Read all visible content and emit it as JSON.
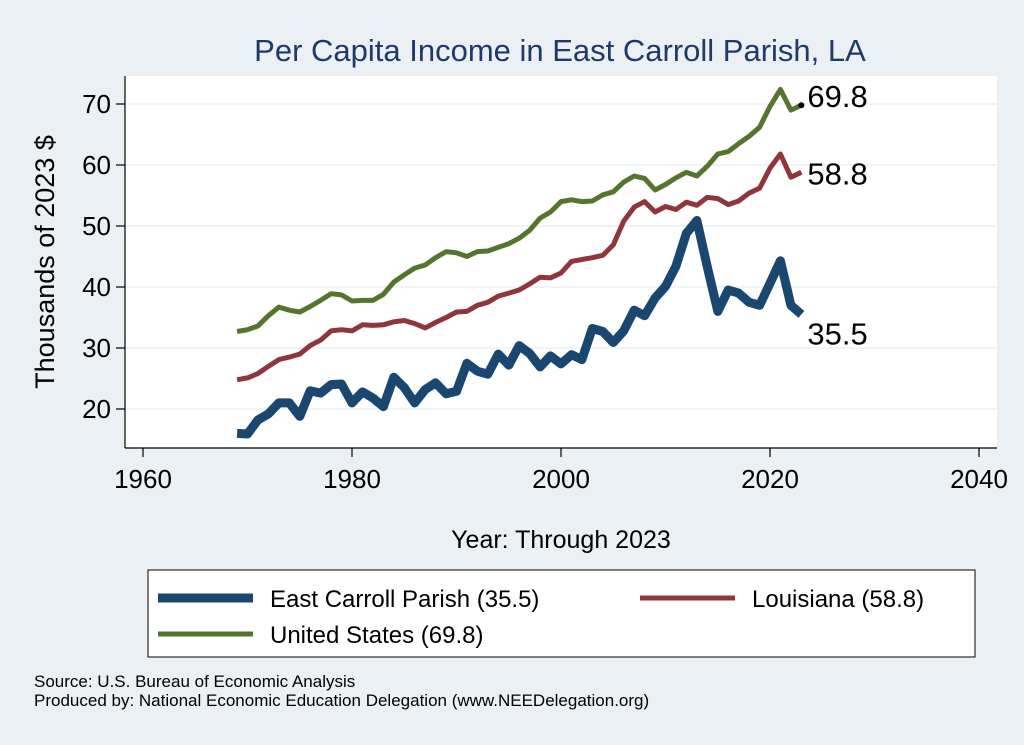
{
  "chart_data": {
    "type": "line",
    "title": "Per Capita Income in East Carroll Parish, LA",
    "xlabel": "Year: Through 2023",
    "ylabel": "Thousands of 2023 $",
    "xlim": [
      1960,
      2040
    ],
    "ylim": [
      14,
      76
    ],
    "xticks": [
      1960,
      1980,
      2000,
      2020,
      2040
    ],
    "yticks": [
      20,
      30,
      40,
      50,
      60,
      70
    ],
    "grid": true,
    "legend_position": "bottom",
    "series": [
      {
        "name": "East Carroll Parish (35.5)",
        "color": "#1a476f",
        "end_label": "35.5",
        "x": [
          1969,
          1970,
          1971,
          1972,
          1973,
          1974,
          1975,
          1976,
          1977,
          1978,
          1979,
          1980,
          1981,
          1982,
          1983,
          1984,
          1985,
          1986,
          1987,
          1988,
          1989,
          1990,
          1991,
          1992,
          1993,
          1994,
          1995,
          1996,
          1997,
          1998,
          1999,
          2000,
          2001,
          2002,
          2003,
          2004,
          2005,
          2006,
          2007,
          2008,
          2009,
          2010,
          2011,
          2012,
          2013,
          2014,
          2015,
          2016,
          2017,
          2018,
          2019,
          2020,
          2021,
          2022,
          2023
        ],
        "values": [
          16.0,
          15.9,
          18.2,
          19.2,
          21.0,
          21.0,
          18.8,
          23.0,
          22.6,
          24.0,
          24.1,
          21.0,
          22.8,
          21.8,
          20.4,
          25.2,
          23.5,
          21.0,
          23.2,
          24.3,
          22.5,
          22.9,
          27.5,
          26.2,
          25.7,
          29.0,
          27.2,
          30.4,
          29.1,
          26.9,
          28.7,
          27.4,
          28.9,
          28.1,
          33.2,
          32.7,
          30.9,
          32.8,
          36.2,
          35.3,
          38.2,
          40.1,
          43.4,
          48.8,
          50.9,
          43.3,
          36.0,
          39.5,
          39.0,
          37.5,
          37.0,
          40.6,
          44.3,
          37.0,
          35.5
        ]
      },
      {
        "name": "Louisiana (58.8)",
        "color": "#90353b",
        "end_label": "58.8",
        "x": [
          1969,
          1970,
          1971,
          1972,
          1973,
          1974,
          1975,
          1976,
          1977,
          1978,
          1979,
          1980,
          1981,
          1982,
          1983,
          1984,
          1985,
          1986,
          1987,
          1988,
          1989,
          1990,
          1991,
          1992,
          1993,
          1994,
          1995,
          1996,
          1997,
          1998,
          1999,
          2000,
          2001,
          2002,
          2003,
          2004,
          2005,
          2006,
          2007,
          2008,
          2009,
          2010,
          2011,
          2012,
          2013,
          2014,
          2015,
          2016,
          2017,
          2018,
          2019,
          2020,
          2021,
          2022,
          2023
        ],
        "values": [
          24.8,
          25.1,
          25.8,
          27.0,
          28.1,
          28.5,
          29.0,
          30.4,
          31.3,
          32.8,
          33.0,
          32.8,
          33.8,
          33.7,
          33.8,
          34.3,
          34.5,
          34.0,
          33.3,
          34.2,
          35.0,
          35.9,
          36.0,
          37.0,
          37.5,
          38.5,
          39.0,
          39.5,
          40.5,
          41.6,
          41.5,
          42.3,
          44.2,
          44.5,
          44.8,
          45.2,
          46.9,
          50.8,
          53.1,
          54.0,
          52.3,
          53.2,
          52.7,
          53.9,
          53.4,
          54.7,
          54.5,
          53.5,
          54.1,
          55.4,
          56.2,
          59.5,
          61.8,
          58.0,
          58.8
        ]
      },
      {
        "name": "United States (69.8)",
        "color": "#55752f",
        "end_label": "69.8",
        "x": [
          1969,
          1970,
          1971,
          1972,
          1973,
          1974,
          1975,
          1976,
          1977,
          1978,
          1979,
          1980,
          1981,
          1982,
          1983,
          1984,
          1985,
          1986,
          1987,
          1988,
          1989,
          1990,
          1991,
          1992,
          1993,
          1994,
          1995,
          1996,
          1997,
          1998,
          1999,
          2000,
          2001,
          2002,
          2003,
          2004,
          2005,
          2006,
          2007,
          2008,
          2009,
          2010,
          2011,
          2012,
          2013,
          2014,
          2015,
          2016,
          2017,
          2018,
          2019,
          2020,
          2021,
          2022,
          2023
        ],
        "values": [
          32.7,
          33.0,
          33.6,
          35.3,
          36.7,
          36.2,
          35.9,
          36.8,
          37.8,
          38.9,
          38.7,
          37.7,
          37.8,
          37.8,
          38.8,
          40.8,
          42.0,
          43.1,
          43.6,
          44.8,
          45.8,
          45.6,
          45.0,
          45.8,
          45.9,
          46.5,
          47.1,
          48.0,
          49.3,
          51.3,
          52.3,
          54.0,
          54.3,
          54.0,
          54.1,
          55.1,
          55.6,
          57.2,
          58.2,
          57.8,
          55.9,
          56.8,
          57.9,
          58.8,
          58.2,
          59.8,
          61.8,
          62.2,
          63.5,
          64.7,
          66.2,
          69.6,
          72.4,
          69.0,
          69.8
        ]
      }
    ]
  },
  "source_line": "Source: U.S. Bureau of Economic Analysis",
  "produced_line": "Produced by: National Economic Education Delegation (www.NEEDelegation.org)"
}
